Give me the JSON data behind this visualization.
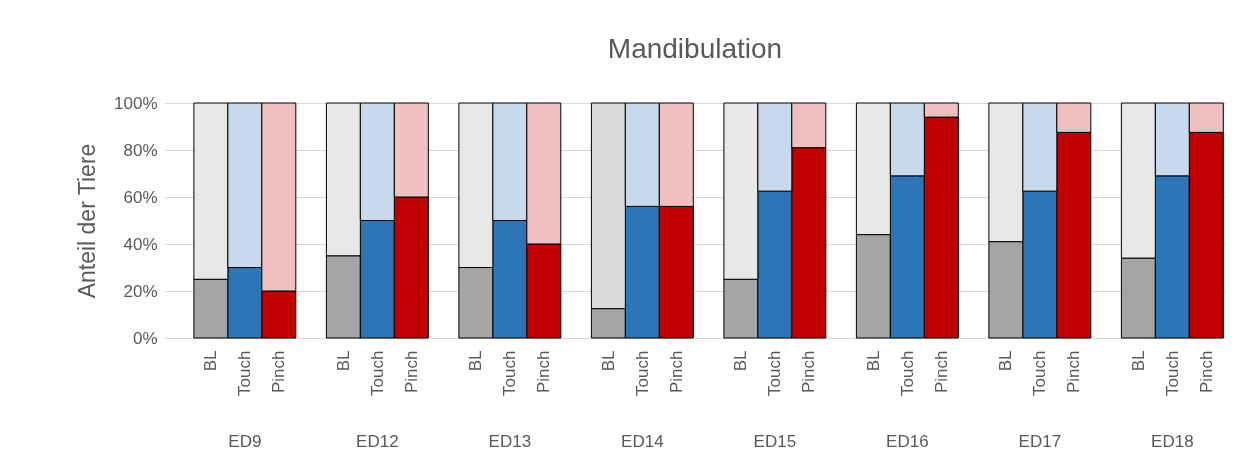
{
  "chart_data": {
    "type": "bar",
    "title": "Mandibulation",
    "ylabel": "Anteil der Tiere",
    "stacked": true,
    "categories": [
      "BL",
      "Touch",
      "Pinch",
      "BL",
      "Touch",
      "Pinch",
      "BL",
      "Touch",
      "Pinch",
      "BL",
      "Touch",
      "Pinch",
      "BL",
      "Touch",
      "Pinch",
      "BL",
      "Touch",
      "Pinch",
      "BL",
      "Touch",
      "Pinch",
      "BL",
      "Touch",
      "Pinch"
    ],
    "series": [
      {
        "values": [
          25,
          30,
          20,
          35,
          50,
          60,
          30,
          50,
          40,
          12.5,
          56,
          56,
          25,
          62.5,
          81,
          44,
          69,
          94,
          41,
          62.5,
          87.5,
          34,
          69,
          87.5
        ],
        "colors": [
          "#a5a5a5",
          "#2e75b6",
          "#c00000",
          "#a5a5a5",
          "#2e75b6",
          "#c00000",
          "#a5a5a5",
          "#2e75b6",
          "#c00000",
          "#a5a5a5",
          "#2e75b6",
          "#c00000",
          "#a5a5a5",
          "#2e75b6",
          "#c00000",
          "#a5a5a5",
          "#2e75b6",
          "#c00000",
          "#a5a5a5",
          "#2e75b6",
          "#c00000",
          "#a5a5a5",
          "#2e75b6",
          "#c00000"
        ]
      },
      {
        "values": [
          75,
          70,
          80,
          65,
          50,
          40,
          70,
          50,
          60,
          87.5,
          44,
          44,
          75,
          37.5,
          19,
          56,
          31,
          6,
          59,
          37.5,
          12.5,
          66,
          31,
          12.5
        ],
        "colors": [
          "#e8e8e8",
          "#c7d9ec",
          "#f0c0c1",
          "#e8e8e8",
          "#c7d9ec",
          "#f0c0c1",
          "#e8e8e8",
          "#c7d9ec",
          "#f0c0c1",
          "#dadada",
          "#c7d9ec",
          "#f0c0c1",
          "#e8e8e8",
          "#c7d9ec",
          "#f0c0c1",
          "#e8e8e8",
          "#c7d9ec",
          "#f0c0c1",
          "#e8e8e8",
          "#c7d9ec",
          "#f0c0c1",
          "#e8e8e8",
          "#c7d9ec",
          "#f0c0c1"
        ]
      }
    ],
    "annotations": [
      "ED9",
      "ED12",
      "ED13",
      "ED14",
      "ED15",
      "ED16",
      "ED17",
      "ED18"
    ],
    "ylim": [
      0,
      100
    ],
    "yticks": [
      {
        "value": 0,
        "label": "0%"
      },
      {
        "value": 20,
        "label": "20%"
      },
      {
        "value": 40,
        "label": "40%"
      },
      {
        "value": 60,
        "label": "60%"
      },
      {
        "value": 80,
        "label": "80%"
      },
      {
        "value": 100,
        "label": "100%"
      }
    ],
    "grid": "y",
    "legend": false
  }
}
